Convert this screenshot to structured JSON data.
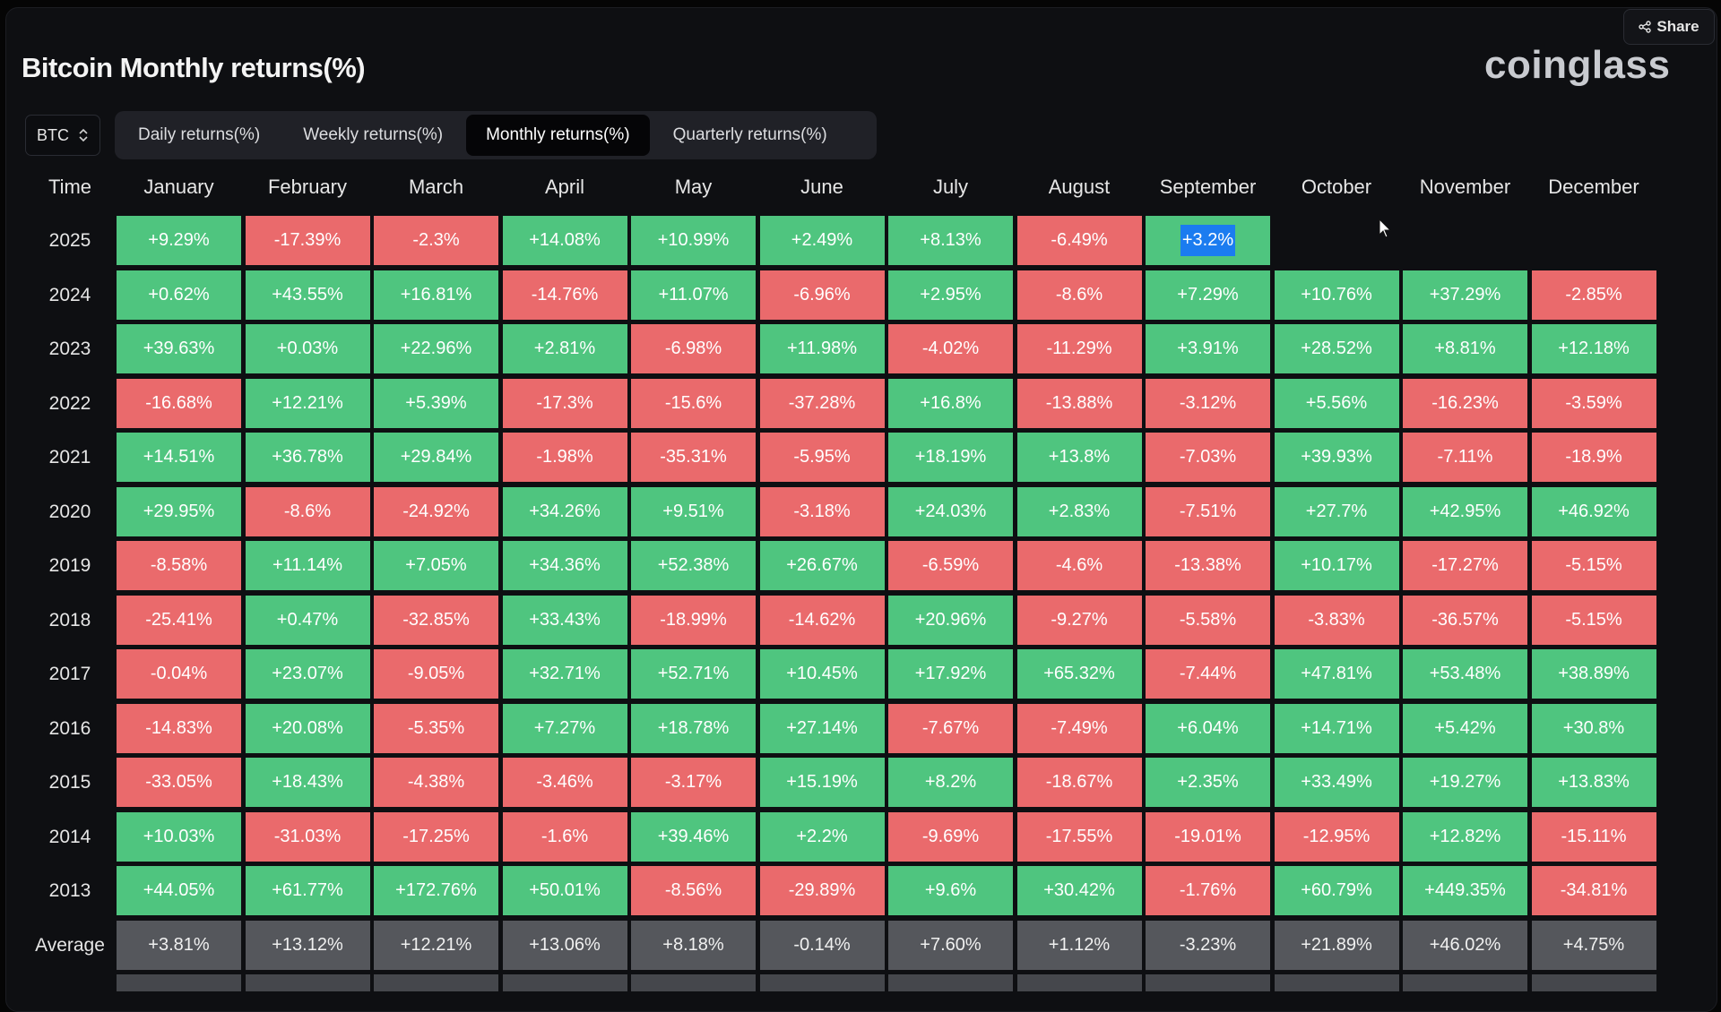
{
  "title": "Bitcoin Monthly returns(%)",
  "brand": "coinglass",
  "share_label": "Share",
  "asset": "BTC",
  "tabs": [
    {
      "label": "Daily returns(%)",
      "active": false
    },
    {
      "label": "Weekly returns(%)",
      "active": false
    },
    {
      "label": "Monthly returns(%)",
      "active": true
    },
    {
      "label": "Quarterly returns(%)",
      "active": false
    }
  ],
  "colors": {
    "positive": "#4fc57f",
    "negative": "#ea6a6c",
    "average": "#55575c",
    "highlight": "#1b7cf0"
  },
  "table": {
    "time_header": "Time",
    "months": [
      "January",
      "February",
      "March",
      "April",
      "May",
      "June",
      "July",
      "August",
      "September",
      "October",
      "November",
      "December"
    ],
    "rows": [
      {
        "year": "2025",
        "values": [
          "+9.29%",
          "-17.39%",
          "-2.3%",
          "+14.08%",
          "+10.99%",
          "+2.49%",
          "+8.13%",
          "-6.49%",
          "+3.2%",
          "",
          "",
          ""
        ],
        "highlight": 8
      },
      {
        "year": "2024",
        "values": [
          "+0.62%",
          "+43.55%",
          "+16.81%",
          "-14.76%",
          "+11.07%",
          "-6.96%",
          "+2.95%",
          "-8.6%",
          "+7.29%",
          "+10.76%",
          "+37.29%",
          "-2.85%"
        ]
      },
      {
        "year": "2023",
        "values": [
          "+39.63%",
          "+0.03%",
          "+22.96%",
          "+2.81%",
          "-6.98%",
          "+11.98%",
          "-4.02%",
          "-11.29%",
          "+3.91%",
          "+28.52%",
          "+8.81%",
          "+12.18%"
        ]
      },
      {
        "year": "2022",
        "values": [
          "-16.68%",
          "+12.21%",
          "+5.39%",
          "-17.3%",
          "-15.6%",
          "-37.28%",
          "+16.8%",
          "-13.88%",
          "-3.12%",
          "+5.56%",
          "-16.23%",
          "-3.59%"
        ]
      },
      {
        "year": "2021",
        "values": [
          "+14.51%",
          "+36.78%",
          "+29.84%",
          "-1.98%",
          "-35.31%",
          "-5.95%",
          "+18.19%",
          "+13.8%",
          "-7.03%",
          "+39.93%",
          "-7.11%",
          "-18.9%"
        ]
      },
      {
        "year": "2020",
        "values": [
          "+29.95%",
          "-8.6%",
          "-24.92%",
          "+34.26%",
          "+9.51%",
          "-3.18%",
          "+24.03%",
          "+2.83%",
          "-7.51%",
          "+27.7%",
          "+42.95%",
          "+46.92%"
        ]
      },
      {
        "year": "2019",
        "values": [
          "-8.58%",
          "+11.14%",
          "+7.05%",
          "+34.36%",
          "+52.38%",
          "+26.67%",
          "-6.59%",
          "-4.6%",
          "-13.38%",
          "+10.17%",
          "-17.27%",
          "-5.15%"
        ]
      },
      {
        "year": "2018",
        "values": [
          "-25.41%",
          "+0.47%",
          "-32.85%",
          "+33.43%",
          "-18.99%",
          "-14.62%",
          "+20.96%",
          "-9.27%",
          "-5.58%",
          "-3.83%",
          "-36.57%",
          "-5.15%"
        ]
      },
      {
        "year": "2017",
        "values": [
          "-0.04%",
          "+23.07%",
          "-9.05%",
          "+32.71%",
          "+52.71%",
          "+10.45%",
          "+17.92%",
          "+65.32%",
          "-7.44%",
          "+47.81%",
          "+53.48%",
          "+38.89%"
        ]
      },
      {
        "year": "2016",
        "values": [
          "-14.83%",
          "+20.08%",
          "-5.35%",
          "+7.27%",
          "+18.78%",
          "+27.14%",
          "-7.67%",
          "-7.49%",
          "+6.04%",
          "+14.71%",
          "+5.42%",
          "+30.8%"
        ]
      },
      {
        "year": "2015",
        "values": [
          "-33.05%",
          "+18.43%",
          "-4.38%",
          "-3.46%",
          "-3.17%",
          "+15.19%",
          "+8.2%",
          "-18.67%",
          "+2.35%",
          "+33.49%",
          "+19.27%",
          "+13.83%"
        ]
      },
      {
        "year": "2014",
        "values": [
          "+10.03%",
          "-31.03%",
          "-17.25%",
          "-1.6%",
          "+39.46%",
          "+2.2%",
          "-9.69%",
          "-17.55%",
          "-19.01%",
          "-12.95%",
          "+12.82%",
          "-15.11%"
        ]
      },
      {
        "year": "2013",
        "values": [
          "+44.05%",
          "+61.77%",
          "+172.76%",
          "+50.01%",
          "-8.56%",
          "-29.89%",
          "+9.6%",
          "+30.42%",
          "-1.76%",
          "+60.79%",
          "+449.35%",
          "-34.81%"
        ]
      }
    ],
    "average": {
      "label": "Average",
      "values": [
        "+3.81%",
        "+13.12%",
        "+12.21%",
        "+13.06%",
        "+8.18%",
        "-0.14%",
        "+7.60%",
        "+1.12%",
        "-3.23%",
        "+21.89%",
        "+46.02%",
        "+4.75%"
      ]
    }
  }
}
